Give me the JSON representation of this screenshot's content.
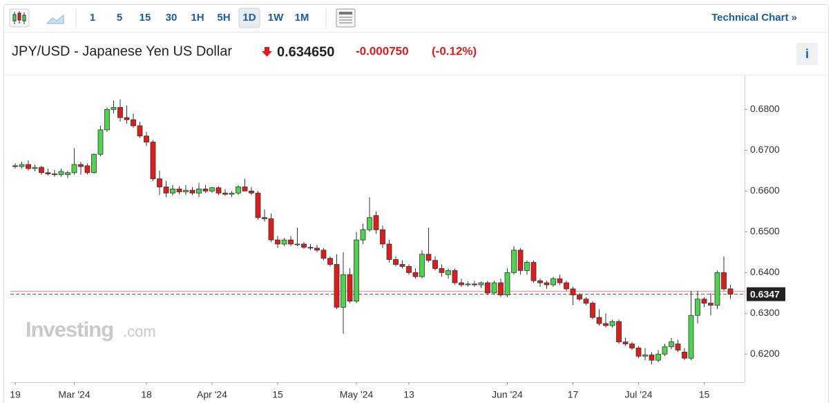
{
  "toolbar": {
    "intervals": [
      "1",
      "5",
      "15",
      "30",
      "1H",
      "5H",
      "1D",
      "1W",
      "1M"
    ],
    "active": "1D",
    "link": "Technical Chart »"
  },
  "quote": {
    "title": "JPY/USD - Japanese Yen US Dollar",
    "price": "0.634650",
    "change": "-0.000750",
    "change_percent": "(-0.12%)",
    "info": "i"
  },
  "watermark": {
    "brand": "Investing",
    "suffix": ".com"
  },
  "chart_data": {
    "type": "candlestick",
    "categories": [
      "19",
      null,
      null,
      null,
      null,
      null,
      null,
      null,
      null,
      "Mar '24",
      null,
      null,
      null,
      null,
      null,
      null,
      null,
      null,
      null,
      null,
      "18",
      null,
      null,
      null,
      null,
      null,
      null,
      null,
      null,
      null,
      "Apr '24",
      null,
      null,
      null,
      null,
      null,
      null,
      null,
      null,
      null,
      "15",
      null,
      null,
      null,
      null,
      null,
      null,
      null,
      null,
      null,
      null,
      null,
      "May '24",
      null,
      null,
      null,
      null,
      null,
      null,
      null,
      "13",
      null,
      null,
      null,
      null,
      null,
      null,
      null,
      null,
      null,
      null,
      null,
      null,
      null,
      null,
      "Jun '24",
      null,
      null,
      null,
      null,
      null,
      null,
      null,
      null,
      null,
      "17",
      null,
      null,
      null,
      null,
      null,
      null,
      null,
      null,
      null,
      "Jul '24",
      null,
      null,
      null,
      null,
      null,
      null,
      null,
      null,
      null,
      "15",
      null,
      null,
      null,
      null
    ],
    "open": [
      0.6662,
      0.666,
      0.6665,
      0.6655,
      0.6658,
      0.6645,
      0.6642,
      0.664,
      0.664,
      0.6645,
      0.6665,
      0.6662,
      0.6645,
      0.669,
      0.675,
      0.68,
      0.6805,
      0.678,
      0.6775,
      0.676,
      0.6735,
      0.672,
      0.663,
      0.661,
      0.6595,
      0.6605,
      0.6598,
      0.6602,
      0.6595,
      0.6605,
      0.66,
      0.6608,
      0.6595,
      0.6592,
      0.6595,
      0.661,
      0.66,
      0.6595,
      0.6535,
      0.6532,
      0.648,
      0.647,
      0.648,
      0.647,
      0.647,
      0.6462,
      0.646,
      0.6455,
      0.6435,
      0.642,
      0.6315,
      0.6395,
      0.633,
      0.648,
      0.6505,
      0.654,
      0.6505,
      0.647,
      0.6432,
      0.642,
      0.6415,
      0.64,
      0.639,
      0.6445,
      0.643,
      0.641,
      0.6395,
      0.6405,
      0.6375,
      0.637,
      0.6372,
      0.637,
      0.6375,
      0.635,
      0.6375,
      0.6345,
      0.64,
      0.6455,
      0.6405,
      0.6425,
      0.638,
      0.6375,
      0.637,
      0.6385,
      0.6375,
      0.636,
      0.6345,
      0.6335,
      0.6325,
      0.629,
      0.6275,
      0.627,
      0.628,
      0.623,
      0.6225,
      0.6215,
      0.6195,
      0.6198,
      0.6185,
      0.62,
      0.6218,
      0.6225,
      0.6205,
      0.619,
      0.6295,
      0.6335,
      0.6325,
      0.632,
      0.64,
      0.636
    ],
    "high": [
      0.6668,
      0.6672,
      0.6675,
      0.6665,
      0.6662,
      0.6655,
      0.6652,
      0.6655,
      0.665,
      0.6705,
      0.6672,
      0.6668,
      0.6692,
      0.676,
      0.6805,
      0.6822,
      0.6825,
      0.681,
      0.679,
      0.677,
      0.6745,
      0.6725,
      0.665,
      0.6625,
      0.6615,
      0.6612,
      0.6615,
      0.661,
      0.662,
      0.6615,
      0.661,
      0.6612,
      0.6605,
      0.66,
      0.6615,
      0.663,
      0.661,
      0.66,
      0.6555,
      0.6545,
      0.649,
      0.6485,
      0.649,
      0.651,
      0.6475,
      0.647,
      0.6468,
      0.646,
      0.644,
      0.6445,
      0.645,
      0.641,
      0.65,
      0.652,
      0.6585,
      0.655,
      0.6515,
      0.648,
      0.644,
      0.643,
      0.642,
      0.641,
      0.6455,
      0.651,
      0.644,
      0.642,
      0.641,
      0.641,
      0.6385,
      0.6378,
      0.638,
      0.6378,
      0.638,
      0.638,
      0.6385,
      0.641,
      0.6465,
      0.646,
      0.643,
      0.643,
      0.6385,
      0.638,
      0.639,
      0.6395,
      0.638,
      0.6365,
      0.635,
      0.634,
      0.633,
      0.631,
      0.63,
      0.6285,
      0.6285,
      0.624,
      0.623,
      0.622,
      0.6215,
      0.6205,
      0.621,
      0.6225,
      0.624,
      0.6235,
      0.6215,
      0.6355,
      0.6355,
      0.634,
      0.635,
      0.6405,
      0.644,
      0.637
    ],
    "low": [
      0.6655,
      0.6655,
      0.665,
      0.6648,
      0.664,
      0.6638,
      0.6635,
      0.6635,
      0.6632,
      0.664,
      0.664,
      0.664,
      0.6643,
      0.6685,
      0.6745,
      0.679,
      0.677,
      0.6765,
      0.6755,
      0.673,
      0.671,
      0.6625,
      0.659,
      0.6585,
      0.6588,
      0.6592,
      0.659,
      0.659,
      0.6585,
      0.6595,
      0.6595,
      0.659,
      0.6588,
      0.6585,
      0.659,
      0.66,
      0.659,
      0.653,
      0.6525,
      0.6475,
      0.646,
      0.6465,
      0.6465,
      0.6465,
      0.6458,
      0.6455,
      0.645,
      0.643,
      0.6415,
      0.631,
      0.625,
      0.6325,
      0.6325,
      0.647,
      0.65,
      0.6495,
      0.646,
      0.6425,
      0.6415,
      0.641,
      0.6395,
      0.6385,
      0.6385,
      0.6425,
      0.6405,
      0.639,
      0.6385,
      0.637,
      0.6365,
      0.6365,
      0.6365,
      0.6362,
      0.6345,
      0.6345,
      0.634,
      0.634,
      0.6395,
      0.6395,
      0.6395,
      0.6375,
      0.6365,
      0.636,
      0.6365,
      0.637,
      0.6355,
      0.632,
      0.633,
      0.632,
      0.6285,
      0.627,
      0.6265,
      0.6265,
      0.6225,
      0.622,
      0.621,
      0.619,
      0.6185,
      0.6175,
      0.618,
      0.6195,
      0.6212,
      0.6205,
      0.6185,
      0.6185,
      0.6275,
      0.6315,
      0.6295,
      0.631,
      0.6355,
      0.6335
    ],
    "close": [
      0.666,
      0.6665,
      0.6655,
      0.6658,
      0.6645,
      0.6642,
      0.664,
      0.6648,
      0.6645,
      0.6665,
      0.666,
      0.6645,
      0.669,
      0.675,
      0.68,
      0.6805,
      0.678,
      0.6775,
      0.676,
      0.6735,
      0.672,
      0.663,
      0.661,
      0.6595,
      0.6605,
      0.6598,
      0.6602,
      0.6595,
      0.6605,
      0.66,
      0.6608,
      0.6595,
      0.6592,
      0.6595,
      0.661,
      0.66,
      0.6595,
      0.6535,
      0.6532,
      0.648,
      0.647,
      0.648,
      0.647,
      0.647,
      0.6462,
      0.646,
      0.6455,
      0.6435,
      0.642,
      0.6315,
      0.6395,
      0.633,
      0.648,
      0.6505,
      0.6535,
      0.6505,
      0.647,
      0.6432,
      0.642,
      0.6415,
      0.64,
      0.639,
      0.6445,
      0.643,
      0.641,
      0.64,
      0.6405,
      0.6375,
      0.637,
      0.6372,
      0.637,
      0.6375,
      0.635,
      0.6375,
      0.6345,
      0.64,
      0.6455,
      0.6405,
      0.6425,
      0.638,
      0.6375,
      0.637,
      0.6385,
      0.6375,
      0.636,
      0.6345,
      0.6335,
      0.6325,
      0.629,
      0.6275,
      0.627,
      0.628,
      0.623,
      0.6225,
      0.6215,
      0.6195,
      0.6198,
      0.6185,
      0.62,
      0.6218,
      0.623,
      0.621,
      0.619,
      0.6295,
      0.6335,
      0.6325,
      0.632,
      0.64,
      0.636,
      0.6347
    ],
    "up_color": "#4fd34f",
    "down_color": "#dd1c1c",
    "ylim": [
      0.6131,
      0.6882
    ],
    "yticks": [
      {
        "value": 0.62,
        "label": "0.6200"
      },
      {
        "value": 0.63,
        "label": "0.6300"
      },
      {
        "value": 0.64,
        "label": "0.6400"
      },
      {
        "value": 0.65,
        "label": "0.6500"
      },
      {
        "value": 0.66,
        "label": "0.6600"
      },
      {
        "value": 0.67,
        "label": "0.6700"
      },
      {
        "value": 0.68,
        "label": "0.6800"
      }
    ],
    "last_price": {
      "value": 0.6347,
      "label": "0.6347"
    },
    "previous_close": 0.6354,
    "grid": false
  }
}
